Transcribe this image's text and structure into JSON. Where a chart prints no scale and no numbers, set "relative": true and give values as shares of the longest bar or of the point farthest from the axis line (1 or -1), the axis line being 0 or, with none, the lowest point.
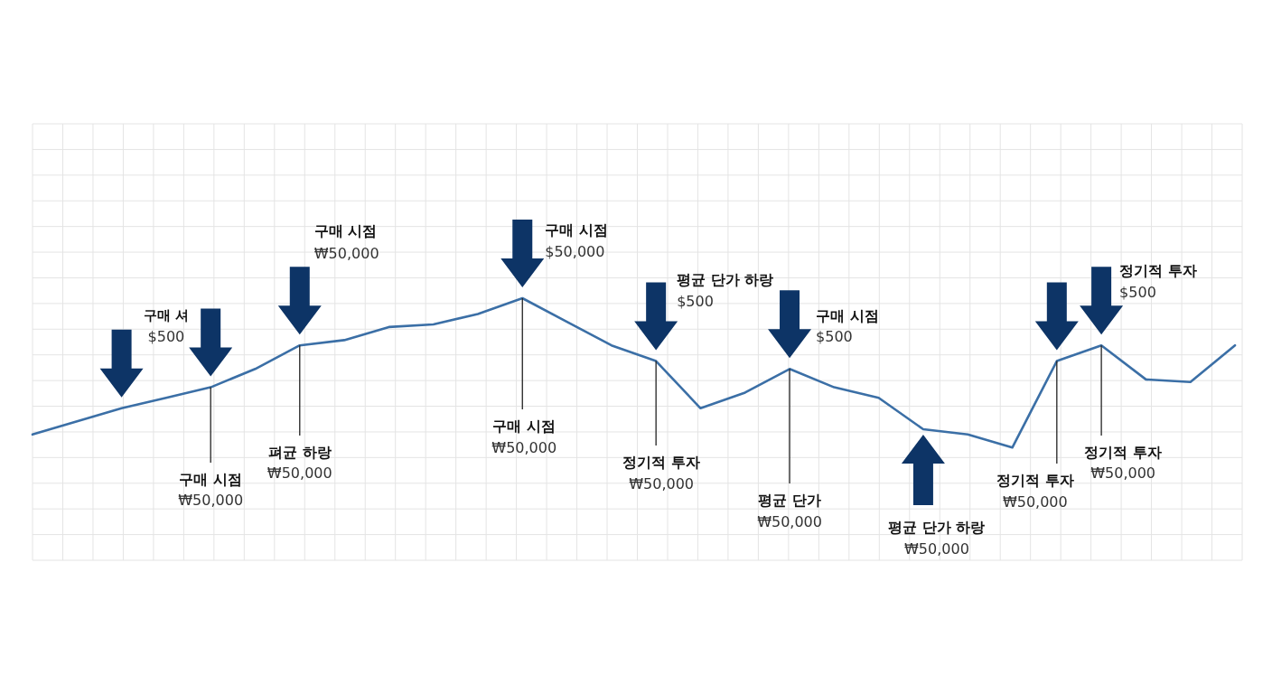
{
  "chart_data": {
    "type": "line",
    "relative": true,
    "grid": true,
    "categories": [
      null,
      null,
      null,
      null,
      null,
      null,
      null,
      null,
      null,
      null,
      null,
      null,
      null,
      null,
      null,
      null,
      null,
      null,
      null,
      null,
      null,
      null,
      null,
      null,
      null,
      null,
      null,
      null
    ],
    "series": [
      {
        "color": "#3b6fa6",
        "values": [
          0.48,
          0.53,
          0.58,
          0.62,
          0.66,
          0.73,
          0.82,
          0.84,
          0.89,
          0.9,
          0.94,
          1,
          0.91,
          0.82,
          0.76,
          0.58,
          0.64,
          0.73,
          0.66,
          0.62,
          0.5,
          0.48,
          0.43,
          0.76,
          0.82,
          0.69,
          0.68,
          0.82
        ]
      }
    ],
    "annotations": [
      "구매 셔",
      "$500",
      "구매 시점",
      "₩50,000",
      "구매 시점",
      "₩50,000",
      "펴균 하랑",
      "₩50,000",
      "구매 시점",
      "$50,000",
      "구매 시점",
      "₩50,000",
      "평균 단가 하랑",
      "$500",
      "정기적 투자",
      "₩50,000",
      "구매 시점",
      "$500",
      "평균 단가",
      "₩50,000",
      "평균 단가 하랑",
      "₩50,000",
      "정기적 투자",
      "₩50,000",
      "정기적 투자",
      "$500",
      "정기적 투자",
      "₩50,000"
    ]
  }
}
